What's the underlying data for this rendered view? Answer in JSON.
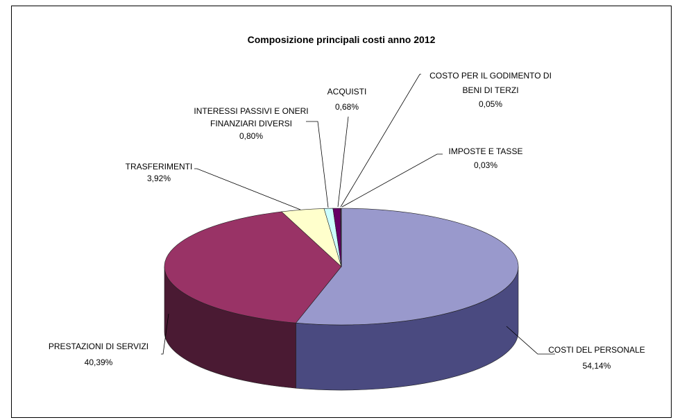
{
  "chart_data": {
    "type": "pie",
    "title": "Composizione principali costi anno 2012",
    "slices": [
      {
        "label": "COSTI DEL PERSONALE",
        "value": 54.14,
        "pct_label": "54,14%",
        "color": "#9999cc",
        "side_color": "#4a4a80"
      },
      {
        "label": "PRESTAZIONI DI SERVIZI",
        "value": 40.39,
        "pct_label": "40,39%",
        "color": "#993366",
        "side_color": "#4a1a33"
      },
      {
        "label": "TRASFERIMENTI",
        "value": 3.92,
        "pct_label": "3,92%",
        "color": "#ffffcc",
        "side_color": "#80806a"
      },
      {
        "label": "INTERESSI PASSIVI E ONERI FINANZIARI DIVERSI",
        "label_lines": [
          "INTERESSI PASSIVI E ONERI",
          "FINANZIARI DIVERSI"
        ],
        "value": 0.8,
        "pct_label": "0,80%",
        "color": "#ccffff",
        "side_color": "#6a8080"
      },
      {
        "label": "ACQUISTI",
        "value": 0.68,
        "pct_label": "0,68%",
        "color": "#660066",
        "side_color": "#330033"
      },
      {
        "label": "COSTO PER IL GODIMENTO DI BENI DI TERZI",
        "label_lines": [
          "COSTO PER IL GODIMENTO DI",
          "BENI DI TERZI"
        ],
        "value": 0.05,
        "pct_label": "0,05%",
        "color": "#ff8080",
        "side_color": "#803f3f"
      },
      {
        "label": "IMPOSTE E TASSE",
        "value": 0.03,
        "pct_label": "0,03%",
        "color": "#0066cc",
        "side_color": "#003366"
      }
    ]
  }
}
